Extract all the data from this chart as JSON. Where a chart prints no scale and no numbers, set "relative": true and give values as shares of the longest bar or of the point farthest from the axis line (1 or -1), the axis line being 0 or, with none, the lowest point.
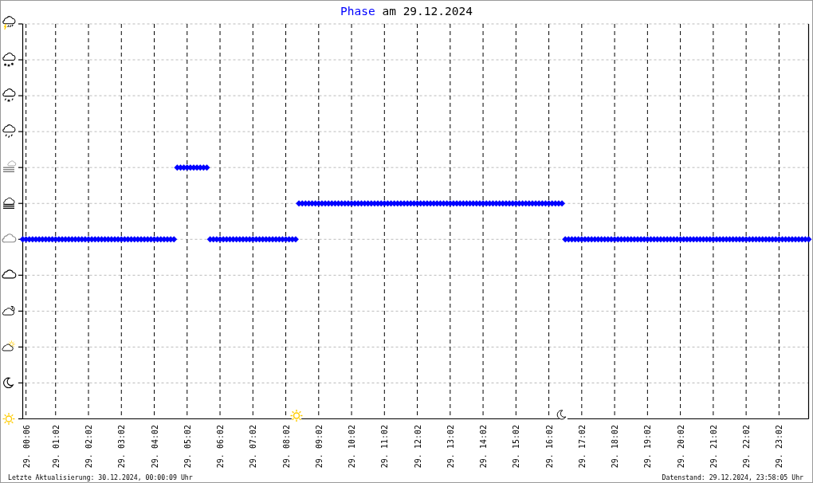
{
  "chart_data": {
    "type": "scatter",
    "title": "am 29.12.2024",
    "relative": true,
    "categories": [
      null,
      "29. 00:06",
      null,
      null,
      null,
      null,
      null,
      null,
      null,
      null,
      "29. 01:02",
      null,
      null,
      null,
      null,
      null,
      null,
      null,
      null,
      null,
      "29. 02:02",
      null,
      null,
      null,
      null,
      null,
      null,
      null,
      null,
      null,
      "29. 03:02",
      null,
      null,
      null,
      null,
      null,
      null,
      null,
      null,
      null,
      "29. 04:02",
      null,
      null,
      null,
      null,
      null,
      null,
      null,
      null,
      null,
      "29. 05:02",
      null,
      null,
      null,
      null,
      null,
      null,
      null,
      null,
      null,
      "29. 06:02",
      null,
      null,
      null,
      null,
      null,
      null,
      null,
      null,
      null,
      "29. 07:02",
      null,
      null,
      null,
      null,
      null,
      null,
      null,
      null,
      null,
      "29. 08:02",
      null,
      null,
      null,
      null,
      null,
      null,
      null,
      null,
      null,
      "29. 09:02",
      null,
      null,
      null,
      null,
      null,
      null,
      null,
      null,
      null,
      "29. 10:02",
      null,
      null,
      null,
      null,
      null,
      null,
      null,
      null,
      null,
      "29. 11:02",
      null,
      null,
      null,
      null,
      null,
      null,
      null,
      null,
      null,
      "29. 12:02",
      null,
      null,
      null,
      null,
      null,
      null,
      null,
      null,
      null,
      "29. 13:02",
      null,
      null,
      null,
      null,
      null,
      null,
      null,
      null,
      null,
      "29. 14:02",
      null,
      null,
      null,
      null,
      null,
      null,
      null,
      null,
      null,
      "29. 15:02",
      null,
      null,
      null,
      null,
      null,
      null,
      null,
      null,
      null,
      "29. 16:02",
      null,
      null,
      null,
      null,
      null,
      null,
      null,
      null,
      null,
      "29. 17:02",
      null,
      null,
      null,
      null,
      null,
      null,
      null,
      null,
      null,
      "29. 18:02",
      null,
      null,
      null,
      null,
      null,
      null,
      null,
      null,
      null,
      "29. 19:02",
      null,
      null,
      null,
      null,
      null,
      null,
      null,
      null,
      null,
      "29. 20:02",
      null,
      null,
      null,
      null,
      null,
      null,
      null,
      null,
      null,
      "29. 21:02",
      null,
      null,
      null,
      null,
      null,
      null,
      null,
      null,
      null,
      "29. 22:02",
      null,
      null,
      null,
      null,
      null,
      null,
      null,
      null,
      null,
      "29. 23:02",
      null,
      null,
      null,
      null,
      null,
      null,
      null,
      null,
      null
    ],
    "grid": true,
    "marker": "diamond",
    "series": [
      {
        "name": "Phase",
        "color": "#0000ff",
        "values": [
          0.714,
          0.714,
          0.714,
          0.714,
          0.714,
          0.714,
          0.714,
          0.714,
          0.714,
          0.714,
          0.714,
          0.714,
          0.714,
          0.714,
          0.714,
          0.714,
          0.714,
          0.714,
          0.714,
          0.714,
          0.714,
          0.714,
          0.714,
          0.714,
          0.714,
          0.714,
          0.714,
          0.714,
          0.714,
          0.714,
          0.714,
          0.714,
          0.714,
          0.714,
          0.714,
          0.714,
          0.714,
          0.714,
          0.714,
          0.714,
          0.714,
          0.714,
          0.714,
          0.714,
          0.714,
          0.714,
          0.714,
          1,
          1,
          1,
          1,
          1,
          1,
          1,
          1,
          1,
          1,
          0.714,
          0.714,
          0.714,
          0.714,
          0.714,
          0.714,
          0.714,
          0.714,
          0.714,
          0.714,
          0.714,
          0.714,
          0.714,
          0.714,
          0.714,
          0.714,
          0.714,
          0.714,
          0.714,
          0.714,
          0.714,
          0.714,
          0.714,
          0.714,
          0.714,
          0.714,
          0.714,
          0.857,
          0.857,
          0.857,
          0.857,
          0.857,
          0.857,
          0.857,
          0.857,
          0.857,
          0.857,
          0.857,
          0.857,
          0.857,
          0.857,
          0.857,
          0.857,
          0.857,
          0.857,
          0.857,
          0.857,
          0.857,
          0.857,
          0.857,
          0.857,
          0.857,
          0.857,
          0.857,
          0.857,
          0.857,
          0.857,
          0.857,
          0.857,
          0.857,
          0.857,
          0.857,
          0.857,
          0.857,
          0.857,
          0.857,
          0.857,
          0.857,
          0.857,
          0.857,
          0.857,
          0.857,
          0.857,
          0.857,
          0.857,
          0.857,
          0.857,
          0.857,
          0.857,
          0.857,
          0.857,
          0.857,
          0.857,
          0.857,
          0.857,
          0.857,
          0.857,
          0.857,
          0.857,
          0.857,
          0.857,
          0.857,
          0.857,
          0.857,
          0.857,
          0.857,
          0.857,
          0.857,
          0.857,
          0.857,
          0.857,
          0.857,
          0.857,
          0.857,
          0.857,
          0.857,
          0.857,
          0.857,
          0.714,
          0.714,
          0.714,
          0.714,
          0.714,
          0.714,
          0.714,
          0.714,
          0.714,
          0.714,
          0.714,
          0.714,
          0.714,
          0.714,
          0.714,
          0.714,
          0.714,
          0.714,
          0.714,
          0.714,
          0.714,
          0.714,
          0.714,
          0.714,
          0.714,
          0.714,
          0.714,
          0.714,
          0.714,
          0.714,
          0.714,
          0.714,
          0.714,
          0.714,
          0.714,
          0.714,
          0.714,
          0.714,
          0.714,
          0.714,
          0.714,
          0.714,
          0.714,
          0.714,
          0.714,
          0.714,
          0.714,
          0.714,
          0.714,
          0.714,
          0.714,
          0.714,
          0.714,
          0.714,
          0.714,
          0.714,
          0.714,
          0.714,
          0.714,
          0.714,
          0.714,
          0.714,
          0.714,
          0.714,
          0.714,
          0.714,
          0.714,
          0.714,
          0.714,
          0.714,
          0.714,
          0.714,
          0.714,
          0.714,
          0.714
        ]
      }
    ],
    "annotations": [
      "Letzte Aktualisierung: 30.12.2024, 00:00:09 Uhr",
      "Datenstand: 29.12.2024, 23:58:05 Uhr"
    ]
  }
}
